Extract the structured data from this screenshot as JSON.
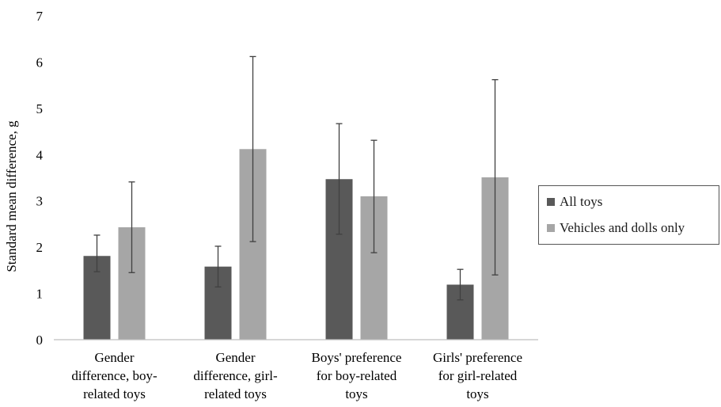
{
  "chart_data": {
    "type": "bar",
    "title": "",
    "xlabel": "",
    "ylabel": "Standard mean difference, g",
    "ylim": [
      0,
      7
    ],
    "yticks": [
      "0",
      "1",
      "2",
      "3",
      "4",
      "5",
      "6",
      "7"
    ],
    "grid": false,
    "legend_position": "right",
    "categories": [
      [
        "Gender",
        "difference, boy-",
        "related toys"
      ],
      [
        "Gender",
        "difference, girl-",
        "related toys"
      ],
      [
        "Boys' preference",
        "for boy-related",
        "toys"
      ],
      [
        "Girls' preference",
        "for girl-related",
        "toys"
      ]
    ],
    "series": [
      {
        "name": "All toys",
        "color": "#595959",
        "values": [
          1.81,
          1.58,
          3.47,
          1.19
        ],
        "error_low": [
          1.47,
          1.14,
          2.28,
          0.86
        ],
        "error_high": [
          2.26,
          2.02,
          4.67,
          1.52
        ]
      },
      {
        "name": "Vehicles and dolls only",
        "color": "#a6a6a6",
        "values": [
          2.43,
          4.12,
          3.1,
          3.51
        ],
        "error_low": [
          1.45,
          2.12,
          1.88,
          1.4
        ],
        "error_high": [
          3.41,
          6.12,
          4.31,
          5.62
        ]
      }
    ]
  }
}
